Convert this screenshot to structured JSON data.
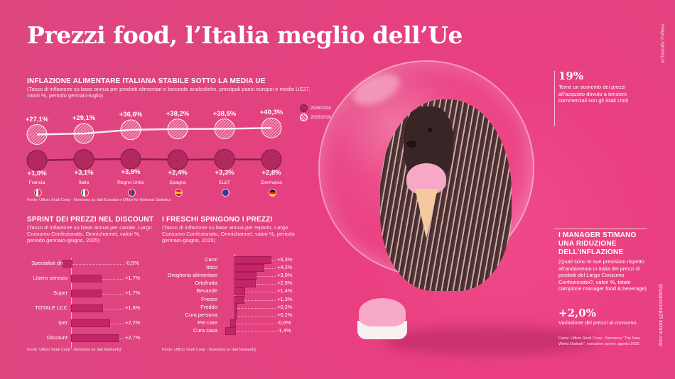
{
  "title": "Prezzi food, l’Italia meglio dell’Ue",
  "credit": "Image ©Ilgrumey.zk",
  "credit2": "@pappscoop25 italiani.coop",
  "chart_data": [
    {
      "type": "line",
      "title": "INFLAZIONE ALIMENTARE ITALIANA STABILE SOTTO LA MEDIA UE",
      "subtitle": "(Tasso di inflazione su base annua per prodotti alimentari e bevande analcoliche, principali paesi europei e media UE27, valori %, periodo gennaio-luglio)",
      "categories": [
        "Francia",
        "Italia",
        "Regno Unito",
        "Spagna",
        "Eu27",
        "Germania"
      ],
      "series": [
        {
          "name": "2025/2019",
          "values": [
            27.1,
            29.1,
            36.6,
            38.2,
            38.5,
            40.3
          ],
          "labels": [
            "+27,1%",
            "+29,1%",
            "+36,6%",
            "+38,2%",
            "+38,5%",
            "+40,3%"
          ]
        },
        {
          "name": "2025/2024",
          "values": [
            1.0,
            3.1,
            3.9,
            2.4,
            3.3,
            2.8
          ],
          "labels": [
            "+1,0%",
            "+3,1%",
            "+3,9%",
            "+2,4%",
            "+3,3%",
            "+2,8%"
          ]
        }
      ],
      "source": "Fonte: Ufficio Studi Coop - Nomisma su dati Eurostat e Office for National Statistics"
    },
    {
      "type": "bar",
      "title": "SPRINT DEI PREZZI NEL DISCOUNT",
      "subtitle": "(Tasso di inflazione su base annua per canale, Largo Consumo Confezionato, Omnichannel, valori %, periodo gennaio-giugno, 2025)",
      "categories": [
        "Specialisti drug",
        "Libero servizio",
        "Super",
        "TOTALE LCC",
        "Iper",
        "Discount"
      ],
      "values": [
        -0.5,
        1.7,
        1.7,
        1.8,
        2.2,
        2.7
      ],
      "labels": [
        "-0,5%",
        "+1,7%",
        "+1,7%",
        "+1,8%",
        "+2,2%",
        "+2,7%"
      ],
      "source": "Fonte: Ufficio Studi Coop - Nomisma su dati NielsenIQ"
    },
    {
      "type": "bar",
      "title": "I FRESCHI SPINGONO I PREZZI",
      "subtitle": "(Tasso di inflazione su base annua per reparto, Largo Consumo Confezionato, Omnichannel, valori %, periodo gennaio-giugno, 2025)",
      "categories": [
        "Carni",
        "Ittico",
        "Drogheria alimentare",
        "Ortofrutta",
        "Bevande",
        "Fresco",
        "Freddo",
        "Cura persona",
        "Pet care",
        "Cura casa"
      ],
      "values": [
        5.3,
        4.2,
        3.0,
        2.9,
        1.4,
        1.3,
        0.2,
        0.2,
        -0.6,
        -1.4
      ],
      "labels": [
        "+5,3%",
        "+4,2%",
        "+3,0%",
        "+2,9%",
        "+1,4%",
        "+1,3%",
        "+0,2%",
        "+0,2%",
        "-0,6%",
        "-1,4%"
      ],
      "source": "Fonte: Ufficio Studi Coop - Nomisma su dati NielsenIQ"
    }
  ],
  "right": {
    "stat1_value": "19%",
    "stat1_text": "Teme un aumento dei prezzi all’acquisto dovuto a tensioni commerciali con gli Stati Uniti",
    "manager_title": "I MANAGER STIMANO UNA RIDUZIONE DELL’INFLAZIONE",
    "manager_sub": "(Quali sono le sue previsioni rispetto all’andamento in Italia dei prezzi di prodotti del Largo Consumo Confezionato?, valori %, totale campione manager food & beverage)",
    "stat2_value": "+2,0%",
    "stat2_text": "Variazione dei prezzi al consumo",
    "source": "Fonte: Ufficio Studi Coop - Nomisma \"The New World Outlook\", executive survey, agosto 2025"
  },
  "colors": {
    "background": "#e1437f",
    "bar": "#c42566",
    "text": "#ffffff"
  }
}
